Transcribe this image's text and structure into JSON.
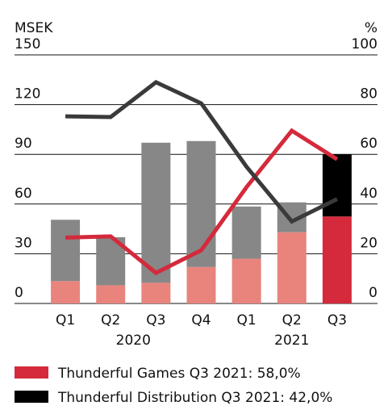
{
  "chart_data": {
    "type": "bar",
    "stacked": true,
    "ylabel": "MSEK",
    "y2label": "%",
    "categories": [
      "Q1",
      "Q2",
      "Q3",
      "Q4",
      "Q1",
      "Q2",
      "Q3"
    ],
    "group_labels": [
      "2020",
      "2021"
    ],
    "group_sizes": [
      4,
      3
    ],
    "ylim": [
      0,
      150
    ],
    "yticks": [
      0,
      30,
      60,
      90,
      120,
      150
    ],
    "y2lim": [
      0,
      100
    ],
    "y2ticks": [
      0,
      20,
      40,
      60,
      80,
      100
    ],
    "grid": true,
    "series": [
      {
        "type": "bar",
        "colors": [
          "#e8847c",
          "#e8847c",
          "#e8847c",
          "#e8847c",
          "#e8847c",
          "#e8847c",
          "#d42a3c"
        ],
        "values": [
          13.5,
          11,
          12.5,
          22,
          27,
          43,
          52.5
        ]
      },
      {
        "type": "bar",
        "colors": [
          "#878787",
          "#878787",
          "#878787",
          "#878787",
          "#878787",
          "#878787",
          "#000000"
        ],
        "values": [
          37,
          29,
          84.5,
          76,
          31.5,
          18,
          37.5
        ]
      },
      {
        "type": "line",
        "axis": "y2",
        "color": "#d42a3c",
        "values": [
          26.5,
          27,
          12.3,
          21.4,
          46.8,
          69.5,
          58
        ]
      },
      {
        "type": "line",
        "axis": "y2",
        "color": "#3a3a3a",
        "values": [
          75.3,
          75,
          89,
          80.5,
          55,
          33,
          42
        ]
      }
    ],
    "legend": [
      {
        "label": "Thunderful Games Q3 2021: 58,0%",
        "color": "#d42a3c"
      },
      {
        "label": "Thunderful Distribution Q3 2021: 42,0%",
        "color": "#000000"
      }
    ]
  }
}
